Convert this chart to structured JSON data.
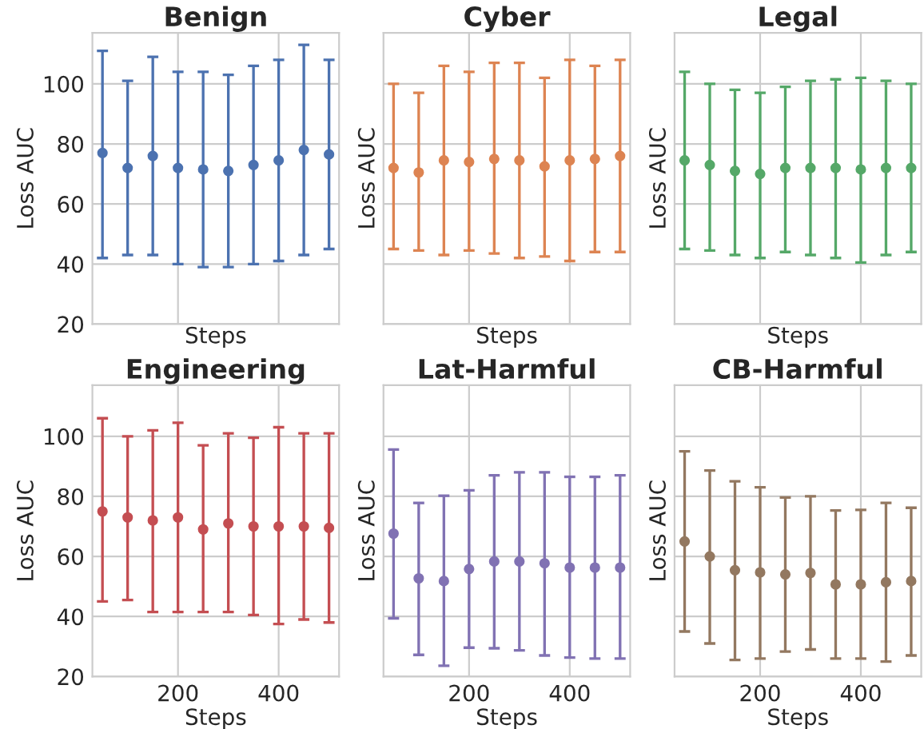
{
  "chart_data": [
    {
      "type": "scatter",
      "title": "Benign",
      "xlabel": "Steps",
      "ylabel": "Loss AUC",
      "x": [
        50,
        100,
        150,
        200,
        250,
        300,
        350,
        400,
        450,
        500
      ],
      "xlim": [
        30,
        520
      ],
      "xticks": [
        200,
        400
      ],
      "ylim": [
        20,
        117
      ],
      "yticks": [
        20,
        40,
        60,
        80,
        100
      ],
      "tick_labels": "y",
      "grid": true,
      "marker": "circle",
      "series": [
        {
          "color": "#4c72b0",
          "values": [
            77,
            72,
            76,
            72,
            71.5,
            71,
            73,
            74.5,
            78,
            76.5
          ],
          "errors": [
            [
              42,
              111
            ],
            [
              43,
              101
            ],
            [
              43,
              109
            ],
            [
              40,
              104
            ],
            [
              39,
              104
            ],
            [
              39,
              103
            ],
            [
              40,
              106
            ],
            [
              41,
              108
            ],
            [
              43,
              113
            ],
            [
              45,
              108
            ]
          ]
        }
      ]
    },
    {
      "type": "scatter",
      "title": "Cyber",
      "xlabel": "Steps",
      "ylabel": "Loss AUC",
      "x": [
        50,
        100,
        150,
        200,
        250,
        300,
        350,
        400,
        450,
        500
      ],
      "xlim": [
        30,
        520
      ],
      "xticks": [
        200,
        400
      ],
      "ylim": [
        20,
        117
      ],
      "yticks": [
        20,
        40,
        60,
        80,
        100
      ],
      "tick_labels": false,
      "grid": true,
      "marker": "circle",
      "series": [
        {
          "color": "#dd8452",
          "values": [
            72,
            70.5,
            74.5,
            74,
            75,
            74.5,
            72.5,
            74.5,
            75,
            76
          ],
          "errors": [
            [
              45,
              100
            ],
            [
              44.5,
              97
            ],
            [
              43,
              106
            ],
            [
              44.5,
              104
            ],
            [
              43.5,
              107
            ],
            [
              42,
              107
            ],
            [
              42.5,
              102
            ],
            [
              41,
              108
            ],
            [
              44,
              106
            ],
            [
              44,
              108
            ]
          ]
        }
      ]
    },
    {
      "type": "scatter",
      "title": "Legal",
      "xlabel": "Steps",
      "ylabel": "Loss AUC",
      "x": [
        50,
        100,
        150,
        200,
        250,
        300,
        350,
        400,
        450,
        500
      ],
      "xlim": [
        30,
        520
      ],
      "xticks": [
        200,
        400
      ],
      "ylim": [
        20,
        117
      ],
      "yticks": [
        20,
        40,
        60,
        80,
        100
      ],
      "tick_labels": false,
      "grid": true,
      "marker": "circle",
      "series": [
        {
          "color": "#55a868",
          "values": [
            74.5,
            73,
            71,
            70,
            72,
            72,
            72,
            71.5,
            72,
            72
          ],
          "errors": [
            [
              45,
              104
            ],
            [
              44.5,
              100
            ],
            [
              43,
              98
            ],
            [
              42,
              97
            ],
            [
              44,
              99
            ],
            [
              43,
              101
            ],
            [
              42,
              101.5
            ],
            [
              40.5,
              102
            ],
            [
              43,
              101
            ],
            [
              44,
              100
            ]
          ]
        }
      ]
    },
    {
      "type": "scatter",
      "title": "Engineering",
      "xlabel": "Steps",
      "ylabel": "Loss AUC",
      "x": [
        50,
        100,
        150,
        200,
        250,
        300,
        350,
        400,
        450,
        500
      ],
      "xlim": [
        30,
        520
      ],
      "xticks": [
        200,
        400
      ],
      "ylim": [
        20,
        117
      ],
      "yticks": [
        20,
        40,
        60,
        80,
        100
      ],
      "grid": true,
      "marker": "circle",
      "series": [
        {
          "color": "#c44e52",
          "values": [
            75,
            73,
            72,
            73,
            69,
            71,
            70,
            70,
            70,
            69.5
          ],
          "errors": [
            [
              45,
              106
            ],
            [
              45.5,
              100
            ],
            [
              41.5,
              102
            ],
            [
              41.5,
              104.5
            ],
            [
              41.5,
              97
            ],
            [
              41.5,
              101
            ],
            [
              40.5,
              99.5
            ],
            [
              37.5,
              103
            ],
            [
              39,
              101
            ],
            [
              38,
              101
            ]
          ]
        }
      ]
    },
    {
      "type": "scatter",
      "title": "Lat-Harmful",
      "xlabel": "Steps",
      "ylabel": "Loss AUC",
      "x": [
        50,
        100,
        150,
        200,
        250,
        300,
        350,
        400,
        450,
        500
      ],
      "xlim": [
        30,
        520
      ],
      "xticks": [
        200,
        400
      ],
      "ylim": [
        20,
        117
      ],
      "yticks": [
        20,
        40,
        60,
        80,
        100
      ],
      "tick_labels": "x",
      "grid": true,
      "marker": "circle",
      "series": [
        {
          "color": "#8172b3",
          "values": [
            67.6,
            52.7,
            51.8,
            55.8,
            58.3,
            58.3,
            57.7,
            56.3,
            56.3,
            56.3
          ],
          "errors": [
            [
              39.4,
              95.6
            ],
            [
              27.2,
              77.8
            ],
            [
              23.6,
              80.2
            ],
            [
              29.6,
              82
            ],
            [
              29.4,
              87
            ],
            [
              28.7,
              88
            ],
            [
              27,
              88
            ],
            [
              26.3,
              86.5
            ],
            [
              26,
              86.5
            ],
            [
              26,
              87
            ]
          ]
        }
      ]
    },
    {
      "type": "scatter",
      "title": "CB-Harmful",
      "xlabel": "Steps",
      "ylabel": "Loss AUC",
      "x": [
        50,
        100,
        150,
        200,
        250,
        300,
        350,
        400,
        450,
        500
      ],
      "xlim": [
        30,
        520
      ],
      "xticks": [
        200,
        400
      ],
      "ylim": [
        20,
        117
      ],
      "yticks": [
        20,
        40,
        60,
        80,
        100
      ],
      "tick_labels": "x",
      "grid": true,
      "marker": "circle",
      "series": [
        {
          "color": "#937860",
          "values": [
            65,
            60,
            55.4,
            54.7,
            54,
            54.5,
            50.7,
            50.7,
            51.4,
            51.8
          ],
          "errors": [
            [
              35,
              95
            ],
            [
              31,
              88.6
            ],
            [
              25.5,
              85
            ],
            [
              26,
              83
            ],
            [
              28.3,
              79.6
            ],
            [
              29,
              80
            ],
            [
              26,
              75.3
            ],
            [
              26,
              75.5
            ],
            [
              25,
              77.8
            ],
            [
              27,
              76.2
            ]
          ]
        }
      ]
    }
  ]
}
